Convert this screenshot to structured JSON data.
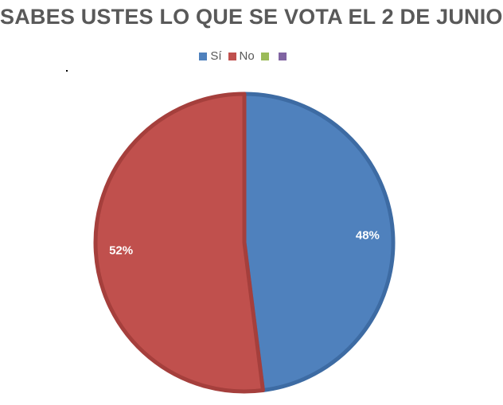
{
  "chart_data": {
    "type": "pie",
    "title": "SABES USTES LO QUE SE VOTA EL 2 DE JUNIO",
    "legend_position": "top",
    "categories": [
      "Sí",
      "No",
      "",
      ""
    ],
    "values": [
      48,
      52,
      0,
      0
    ],
    "data_labels": [
      "48%",
      "52%",
      "",
      ""
    ],
    "colors": [
      "#4f81bd",
      "#c0504d",
      "#9bbb59",
      "#8064a2"
    ],
    "edge_colors": [
      "#3d6ba3",
      "#a53f3c",
      "#7f9a47",
      "#6a5189"
    ],
    "start_angle_deg": 0,
    "direction": "clockwise"
  }
}
